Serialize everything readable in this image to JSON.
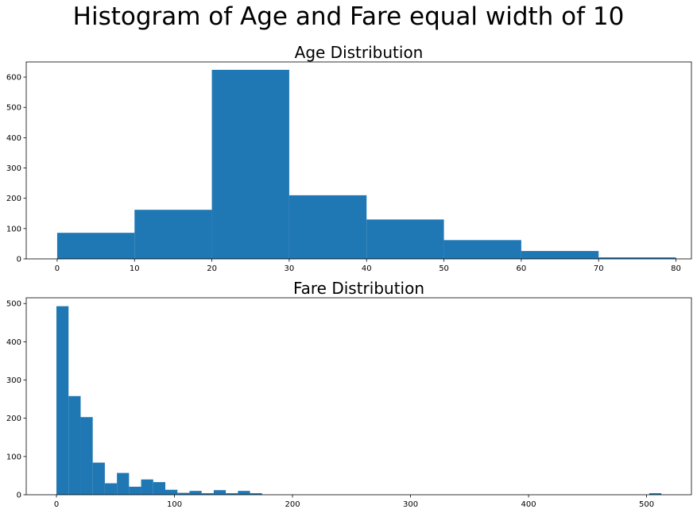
{
  "figure": {
    "suptitle": "Histogram of Age and Fare equal width of 10"
  },
  "chart_data": [
    {
      "type": "bar",
      "title": "Age Distribution",
      "xlabel": "",
      "ylabel": "",
      "bar_color": "#1f77b4",
      "xlim": [
        -4,
        82
      ],
      "ylim": [
        0,
        650
      ],
      "grid": false,
      "bin_edges": [
        0,
        10,
        20,
        30,
        40,
        50,
        60,
        70,
        80
      ],
      "values": [
        86,
        162,
        624,
        210,
        130,
        62,
        26,
        5
      ],
      "xticks": [
        0,
        10,
        20,
        30,
        40,
        50,
        60,
        70,
        80
      ],
      "yticks": [
        0,
        100,
        200,
        300,
        400,
        500,
        600
      ]
    },
    {
      "type": "bar",
      "title": "Fare Distribution",
      "xlabel": "",
      "ylabel": "",
      "bar_color": "#1f77b4",
      "xlim": [
        -25.6,
        538
      ],
      "ylim": [
        0,
        515
      ],
      "grid": false,
      "bin_width": 10.25,
      "bin_start": 0,
      "values": [
        493,
        258,
        203,
        84,
        30,
        57,
        21,
        40,
        33,
        13,
        5,
        10,
        4,
        12,
        4,
        10,
        4,
        0,
        0,
        0,
        0,
        0,
        0,
        0,
        0,
        0,
        0,
        0,
        0,
        0,
        0,
        0,
        0,
        0,
        0,
        0,
        0,
        0,
        0,
        0,
        0,
        0,
        0,
        0,
        0,
        0,
        0,
        0,
        0,
        4
      ],
      "xticks": [
        0,
        100,
        200,
        300,
        400,
        500
      ],
      "yticks": [
        0,
        100,
        200,
        300,
        400,
        500
      ]
    }
  ]
}
